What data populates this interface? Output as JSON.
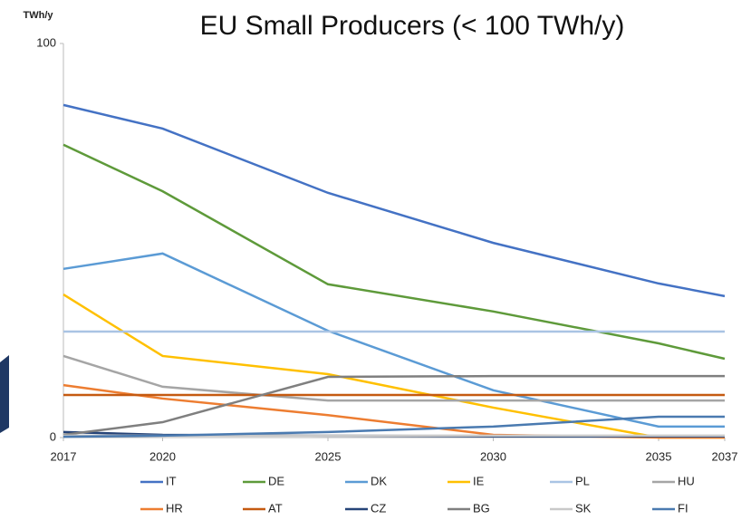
{
  "chart_data": {
    "type": "line",
    "title": "EU Small Producers (< 100 TWh/y)",
    "y_label": "TWh/y",
    "x": [
      2017,
      2020,
      2025,
      2030,
      2035,
      2037
    ],
    "xlim": [
      2017,
      2037
    ],
    "xticks": [
      2017,
      2020,
      2025,
      2030,
      2035,
      2037
    ],
    "ylim": [
      0,
      100
    ],
    "yticks": [
      0,
      100
    ],
    "grid": false,
    "legend": "bottom",
    "series": [
      {
        "name": "IT",
        "color": "#4472c4",
        "values": [
          84.4,
          78.4,
          62.1,
          49.4,
          39.1,
          35.9
        ]
      },
      {
        "name": "DE",
        "color": "#5e9a3a",
        "values": [
          74.3,
          62.5,
          38.9,
          32.0,
          23.9,
          20.0
        ]
      },
      {
        "name": "DK",
        "color": "#5b9bd5",
        "values": [
          42.8,
          46.7,
          27.1,
          12.0,
          2.8,
          2.8
        ]
      },
      {
        "name": "IE",
        "color": "#ffc000",
        "values": [
          36.3,
          20.7,
          16.1,
          7.6,
          0,
          0
        ]
      },
      {
        "name": "PL",
        "color": "#a9c4e4",
        "values": [
          26.9,
          26.9,
          26.9,
          26.9,
          26.9,
          26.9
        ]
      },
      {
        "name": "HU",
        "color": "#a5a5a5",
        "values": [
          20.7,
          12.9,
          9.4,
          9.4,
          9.4,
          9.4
        ]
      },
      {
        "name": "HR",
        "color": "#ed7d31",
        "values": [
          13.3,
          9.9,
          5.7,
          0.7,
          0,
          0
        ]
      },
      {
        "name": "AT",
        "color": "#c55a11",
        "values": [
          10.8,
          10.8,
          10.8,
          10.8,
          10.8,
          10.8
        ]
      },
      {
        "name": "CZ",
        "color": "#264478",
        "values": [
          1.4,
          0.7,
          0.5,
          0.3,
          0.3,
          0.3
        ]
      },
      {
        "name": "BG",
        "color": "#7f7f7f",
        "values": [
          0.7,
          3.9,
          15.4,
          15.6,
          15.6,
          15.6
        ]
      },
      {
        "name": "SK",
        "color": "#c9c9c9",
        "values": [
          0.5,
          0.5,
          0.5,
          0.5,
          0.5,
          0.5
        ]
      },
      {
        "name": "FI",
        "color": "#4a7ab0",
        "values": [
          0.2,
          0.5,
          1.4,
          2.8,
          5.3,
          5.3
        ]
      }
    ]
  }
}
